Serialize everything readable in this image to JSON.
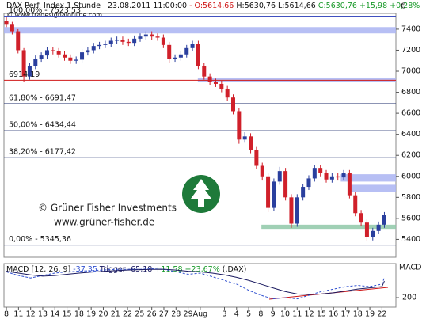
{
  "chart_data": [
    {
      "type": "candlestick",
      "title": "DAX Perf. Index 1 Stunde",
      "timestamp": "23.08.2011 11:00:00",
      "quote_open": "- O:5614,66",
      "quote_high_low": "H:5630,76 L:5614,66",
      "quote_close": "C:5630,76 +15,98 +0,28%",
      "source": "© www.tradesignalonline.com",
      "currency": "€",
      "watermark": [
        "© Grüner Fisher Investments",
        "www.grüner-fisher.de"
      ],
      "up_color": "#2a3f9e",
      "down_color": "#d0202a",
      "x": [
        0,
        0.48,
        0.96,
        1.44,
        1.92,
        2.4,
        2.88,
        3.36,
        3.84,
        4.32,
        4.8,
        5.28,
        5.76,
        6.24,
        6.72,
        7.2,
        7.68,
        8.16,
        8.64,
        9.12,
        9.6,
        10.08,
        10.56,
        11.04,
        11.52,
        12,
        12.48,
        12.96,
        13.44,
        13.92,
        14.4,
        14.88,
        15.36,
        15.84,
        16.32,
        16.8,
        17.28,
        17.76,
        18.24,
        18.72,
        19.2,
        19.68,
        20.16,
        20.64,
        21.12,
        21.6,
        22.08,
        22.56,
        23.04,
        23.52,
        24,
        24.48,
        24.96,
        25.44,
        25.92,
        26.4,
        26.88,
        27.36,
        27.84,
        28.32,
        28.8,
        29.28,
        29.76,
        30.24,
        30.72,
        31.2
      ],
      "open": [
        7480,
        7450,
        7380,
        7200,
        6950,
        7050,
        7120,
        7150,
        7200,
        7190,
        7160,
        7130,
        7100,
        7110,
        7180,
        7200,
        7240,
        7250,
        7260,
        7290,
        7300,
        7280,
        7270,
        7310,
        7330,
        7350,
        7330,
        7320,
        7250,
        7120,
        7130,
        7160,
        7220,
        7260,
        7050,
        6950,
        6900,
        6880,
        6830,
        6750,
        6620,
        6350,
        6380,
        6250,
        6100,
        6000,
        5700,
        5950,
        6050,
        5800,
        5550,
        5800,
        5900,
        5980,
        6080,
        6030,
        5970,
        6000,
        5990,
        6030,
        5820,
        5650,
        5560,
        5420,
        5480,
        5540
      ],
      "high": [
        7520,
        7470,
        7400,
        7220,
        7080,
        7150,
        7180,
        7230,
        7230,
        7220,
        7190,
        7160,
        7140,
        7210,
        7230,
        7270,
        7280,
        7290,
        7320,
        7330,
        7330,
        7310,
        7340,
        7360,
        7380,
        7380,
        7360,
        7350,
        7280,
        7160,
        7190,
        7250,
        7290,
        7290,
        7080,
        6980,
        6930,
        6910,
        6860,
        6780,
        6650,
        6420,
        6410,
        6280,
        6130,
        6030,
        5980,
        6090,
        6080,
        5830,
        5830,
        5930,
        6010,
        6110,
        6110,
        6060,
        6030,
        6030,
        6060,
        6060,
        5850,
        5680,
        5590,
        5510,
        5570,
        5660
      ],
      "low": [
        7420,
        7350,
        7170,
        6900,
        6920,
        7020,
        7090,
        7120,
        7160,
        7130,
        7100,
        7070,
        7070,
        7080,
        7150,
        7170,
        7210,
        7220,
        7230,
        7260,
        7250,
        7240,
        7240,
        7280,
        7300,
        7300,
        7290,
        7220,
        7080,
        7090,
        7100,
        7130,
        7190,
        7020,
        6920,
        6870,
        6850,
        6800,
        6720,
        6590,
        6310,
        6320,
        6220,
        6070,
        5960,
        5660,
        5670,
        5920,
        5770,
        5510,
        5520,
        5770,
        5870,
        5950,
        6000,
        5940,
        5940,
        5960,
        5960,
        5790,
        5620,
        5530,
        5380,
        5390,
        5450,
        5510
      ],
      "close": [
        7450,
        7380,
        7200,
        6950,
        7050,
        7120,
        7150,
        7200,
        7190,
        7160,
        7130,
        7100,
        7110,
        7180,
        7200,
        7240,
        7250,
        7260,
        7290,
        7300,
        7280,
        7270,
        7310,
        7330,
        7350,
        7330,
        7320,
        7250,
        7120,
        7130,
        7160,
        7220,
        7260,
        7050,
        6950,
        6900,
        6880,
        6830,
        6750,
        6620,
        6350,
        6380,
        6250,
        6100,
        6000,
        5700,
        5950,
        6050,
        5800,
        5550,
        5800,
        5900,
        5980,
        6080,
        6030,
        5970,
        6000,
        5990,
        6030,
        5820,
        5650,
        5560,
        5420,
        5480,
        5540,
        5630
      ],
      "xlim": [
        -0.2,
        32.15
      ],
      "ylim": [
        5230,
        7550
      ],
      "yticks": [
        5400,
        5600,
        5800,
        6000,
        6200,
        6400,
        6600,
        6800,
        7000,
        7200,
        7400
      ],
      "levels": [
        {
          "value": 7523.53,
          "label": "100,00% - 7523,53",
          "color": "#4050c0"
        },
        {
          "value": 6914.19,
          "label": "6914,19",
          "color": "#d01818"
        },
        {
          "value": 6691.47,
          "label": "61,80% - 6691,47",
          "color": "#1a2a6a"
        },
        {
          "value": 6434.44,
          "label": "50,00% - 6434,44",
          "color": "#1a2a6a"
        },
        {
          "value": 6177.42,
          "label": "38,20% - 6177,42",
          "color": "#1a2a6a"
        },
        {
          "value": 5345.36,
          "label": "0,00% - 5345,36",
          "color": "#1a2a6a"
        }
      ],
      "zones": [
        {
          "range": [
            7360,
            7420
          ],
          "start": -0.2,
          "color": "#aab4f2"
        },
        {
          "range": [
            6900,
            6940
          ],
          "start": 15.8,
          "color": "#aab4f2"
        },
        {
          "range": [
            5950,
            6020
          ],
          "start": 27.6,
          "color": "#aab4f2"
        },
        {
          "range": [
            5850,
            5920
          ],
          "start": 28.3,
          "color": "#aab4f2"
        },
        {
          "range": [
            5500,
            5540
          ],
          "start": 21.05,
          "color": "#8fc8a8"
        }
      ],
      "xticks": [
        {
          "value": 0,
          "label": "8"
        },
        {
          "value": 1,
          "label": "11"
        },
        {
          "value": 2,
          "label": "12"
        },
        {
          "value": 3,
          "label": "13"
        },
        {
          "value": 4,
          "label": "14"
        },
        {
          "value": 5,
          "label": "15"
        },
        {
          "value": 6,
          "label": "18"
        },
        {
          "value": 7,
          "label": "19"
        },
        {
          "value": 8,
          "label": "20"
        },
        {
          "value": 9,
          "label": "21"
        },
        {
          "value": 10,
          "label": "22"
        },
        {
          "value": 11,
          "label": "25"
        },
        {
          "value": 12,
          "label": "26"
        },
        {
          "value": 13,
          "label": "27"
        },
        {
          "value": 14,
          "label": "28"
        },
        {
          "value": 15,
          "label": "29"
        },
        {
          "value": 16,
          "label": "Aug"
        },
        {
          "value": 18,
          "label": "3"
        },
        {
          "value": 19,
          "label": "4"
        },
        {
          "value": 20,
          "label": "5"
        },
        {
          "value": 21,
          "label": "8"
        },
        {
          "value": 22,
          "label": "9"
        },
        {
          "value": 23,
          "label": "10"
        },
        {
          "value": 24,
          "label": "11"
        },
        {
          "value": 25,
          "label": "12"
        },
        {
          "value": 26,
          "label": "15"
        },
        {
          "value": 27,
          "label": "16"
        },
        {
          "value": 28,
          "label": "17"
        },
        {
          "value": 29,
          "label": "18"
        },
        {
          "value": 30,
          "label": "19"
        },
        {
          "value": 31,
          "label": "22"
        }
      ]
    },
    {
      "type": "line",
      "title": "MACD [12, 26, 9]",
      "macd_value": "-37,35",
      "trigger_value": "Trigger -65,18",
      "change": "+11,58 +23,67%",
      "symbol": "(.DAX)",
      "axis_label": "MACD",
      "x": [
        0,
        1,
        2,
        3,
        4,
        5,
        6,
        7,
        8,
        9,
        10,
        11,
        12,
        13,
        14,
        15,
        16,
        17,
        18,
        19,
        20,
        21,
        22,
        23,
        24,
        25,
        26,
        27,
        28,
        29,
        30,
        31,
        31.2
      ],
      "series": [
        {
          "name": "MACD",
          "color": "#3050d0",
          "values": [
            10,
            -20,
            -40,
            -20,
            0,
            10,
            15,
            20,
            25,
            30,
            30,
            30,
            35,
            30,
            10,
            -10,
            0,
            -30,
            -60,
            -90,
            -140,
            -180,
            -210,
            -200,
            -210,
            -180,
            -150,
            -130,
            -110,
            -100,
            -110,
            -90,
            -37.35
          ]
        },
        {
          "name": "Trigger",
          "color": "#1a1a60",
          "values": [
            15,
            0,
            -15,
            -25,
            -20,
            -10,
            0,
            8,
            14,
            20,
            25,
            28,
            30,
            31,
            25,
            15,
            10,
            0,
            -15,
            -35,
            -60,
            -90,
            -120,
            -150,
            -170,
            -175,
            -170,
            -160,
            -145,
            -130,
            -120,
            -110,
            -65.18
          ]
        }
      ],
      "xlim": [
        -0.2,
        32.15
      ],
      "ylim": [
        -277,
        77
      ],
      "yticks": [
        {
          "value": -200,
          "label": "200"
        }
      ]
    }
  ]
}
